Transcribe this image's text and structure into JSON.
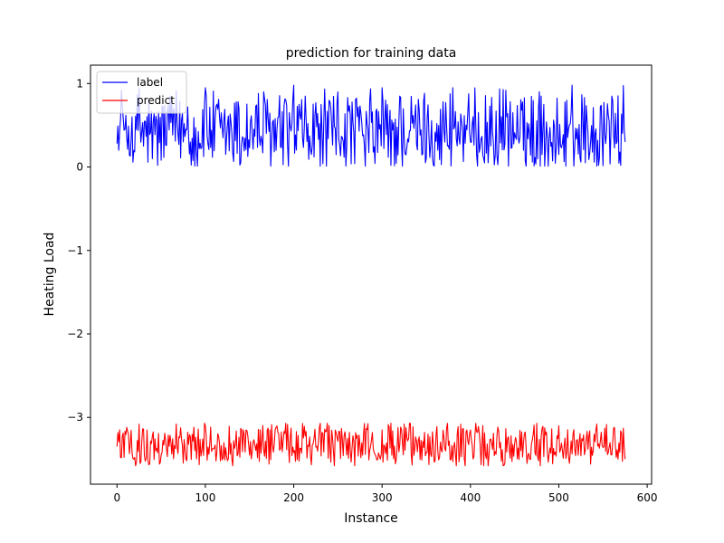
{
  "chart_data": {
    "type": "line",
    "title": "prediction for training data",
    "xlabel": "Instance",
    "ylabel": "Heating Load",
    "xlim": [
      -30,
      605
    ],
    "ylim": [
      -3.8,
      1.22
    ],
    "xticks": [
      0,
      100,
      200,
      300,
      400,
      500,
      600
    ],
    "yticks": [
      1,
      0,
      -1,
      -2,
      -3
    ],
    "ytick_labels": [
      "1",
      "0",
      "−1",
      "−2",
      "−3"
    ],
    "grid": false,
    "legend_position": "upper-left",
    "n_points": 576,
    "series": [
      {
        "name": "label",
        "color": "#0000ff",
        "mean": 0.42,
        "min": 0.01,
        "max": 1.0,
        "anchors": [
          [
            0,
            0.28
          ],
          [
            2,
            0.2
          ],
          [
            5,
            0.92
          ],
          [
            10,
            0.62
          ],
          [
            20,
            0.18
          ],
          [
            25,
            0.95
          ],
          [
            30,
            0.25
          ],
          [
            40,
            0.1
          ],
          [
            46,
            0.02
          ],
          [
            60,
            0.85
          ],
          [
            75,
            0.3
          ],
          [
            80,
            0.72
          ],
          [
            90,
            0.18
          ],
          [
            100,
            0.95
          ],
          [
            120,
            0.35
          ],
          [
            140,
            0.05
          ],
          [
            160,
            0.88
          ],
          [
            180,
            0.2
          ],
          [
            200,
            0.98
          ],
          [
            220,
            0.15
          ],
          [
            250,
            0.9
          ],
          [
            280,
            0.25
          ],
          [
            300,
            0.95
          ],
          [
            310,
            0.02
          ],
          [
            320,
            0.85
          ],
          [
            350,
            0.1
          ],
          [
            380,
            0.95
          ],
          [
            400,
            0.3
          ],
          [
            420,
            0.05
          ],
          [
            440,
            0.92
          ],
          [
            460,
            0.2
          ],
          [
            480,
            0.85
          ],
          [
            500,
            0.15
          ],
          [
            515,
            0.98
          ],
          [
            530,
            0.05
          ],
          [
            545,
            0.02
          ],
          [
            560,
            0.85
          ],
          [
            570,
            0.02
          ],
          [
            575,
            0.3
          ]
        ]
      },
      {
        "name": "predict",
        "color": "#ff0000",
        "mean": -3.33,
        "min": -3.58,
        "max": -3.07,
        "anchors": [
          [
            0,
            -3.35
          ],
          [
            20,
            -3.48
          ],
          [
            25,
            -3.08
          ],
          [
            50,
            -3.45
          ],
          [
            100,
            -3.1
          ],
          [
            130,
            -3.5
          ],
          [
            170,
            -3.15
          ],
          [
            200,
            -3.42
          ],
          [
            230,
            -3.07
          ],
          [
            260,
            -3.45
          ],
          [
            300,
            -3.15
          ],
          [
            325,
            -3.08
          ],
          [
            350,
            -3.42
          ],
          [
            400,
            -3.15
          ],
          [
            437,
            -3.58
          ],
          [
            460,
            -3.3
          ],
          [
            500,
            -3.1
          ],
          [
            512,
            -3.55
          ],
          [
            540,
            -3.2
          ],
          [
            560,
            -3.45
          ],
          [
            575,
            -3.5
          ]
        ]
      }
    ]
  }
}
